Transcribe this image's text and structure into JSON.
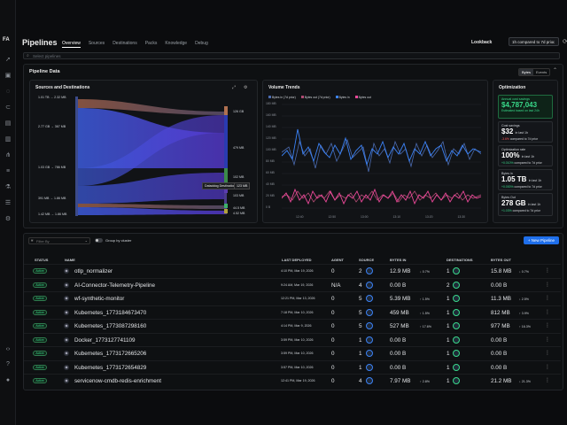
{
  "app": {
    "logo": "FA",
    "page_title": "Pipelines"
  },
  "tabs": [
    "Overview",
    "Sources",
    "Destinations",
    "Packs",
    "Knowledge",
    "Debug"
  ],
  "lookback": {
    "label": "Lookback",
    "value": "1h compared to 7d prior"
  },
  "search": {
    "placeholder": "Select pipelines"
  },
  "pipeline_data": {
    "title": "Pipeline Data",
    "toggle": [
      "Bytes",
      "Events"
    ],
    "sankey": {
      "title": "Sources and Destinations",
      "sources": [
        "1.01 TB → 2.32 MB",
        "2.77 GB → 367 MB",
        "1.03 GB → 786 MB",
        "391 MB → 1.86 MB",
        "1.42 MB → 1.86 MB"
      ],
      "destinations": [
        "126 GB",
        "479 MB",
        "102 MB",
        "103 MB",
        "44.5 MB",
        "4.52 MB"
      ],
      "tooltip": "Dataddog Destination",
      "tooltip_value": "123 MB"
    },
    "volume": {
      "title": "Volume Trends",
      "legend": [
        "Bytes in (7d prior)",
        "Bytes out (7d prior)",
        "Bytes in",
        "Bytes out"
      ],
      "legend_colors": [
        "#4b6bb0",
        "#b04a72",
        "#3b82f6",
        "#ec4899"
      ],
      "y_labels": [
        "180 MB",
        "160 MB",
        "140 MB",
        "120 MB",
        "100 MB",
        "80 MB",
        "60 MB",
        "40 MB",
        "20 MB",
        "0 B"
      ],
      "x_labels": [
        "12:40",
        "12:50",
        "13:00",
        "13:10",
        "13:20",
        "13:30"
      ]
    },
    "optimization": {
      "title": "Optimization",
      "cards": [
        {
          "label": "Annual cost savings",
          "value": "$4,787,043",
          "note": "Estimated based on last 24h"
        },
        {
          "label": "Cost savings",
          "value": "$32",
          "unit": "in last 1h",
          "delta": "-3.6%",
          "note": "compared to 7d prior"
        },
        {
          "label": "Optimization rate",
          "value": "100%",
          "unit": "in last 1h",
          "delta": "+0.010%",
          "note": "compared to 7d prior"
        },
        {
          "label": "Bytes in",
          "value": "1.05 TB",
          "unit": "in last 1h",
          "delta": "+0.000%",
          "note": "compared to 7d prior"
        },
        {
          "label": "Bytes Out",
          "value": "278 GB",
          "unit": "in last 1h",
          "delta": "+1.03%",
          "note": "compared to 7d prior"
        }
      ]
    }
  },
  "table": {
    "filter_placeholder": "Filter By",
    "group_by_label": "Group by cluster",
    "new_button": "+ New Pipeline",
    "headers": [
      "STATUS",
      "NAME",
      "LAST DEPLOYED",
      "AGENT",
      "SOURCE",
      "BYTES IN",
      "DESTINATIONS",
      "BYTES OUT"
    ],
    "rows": [
      {
        "status": "Active",
        "name": "otlp_normalizer",
        "deployed": "4:10 PM, Mar 19, 2026",
        "agent": "0",
        "source": "2",
        "bytes_in": "12.9 MB",
        "in_delta": "↓ 0.7%",
        "dest": "1",
        "bytes_out": "15.8 MB",
        "out_delta": "↓ 0.7%"
      },
      {
        "status": "Active",
        "name": "AI-Connector-Telemetry-Pipeline",
        "deployed": "9:24 AM, Mar 19, 2026",
        "agent": "N/A",
        "source": "4",
        "bytes_in": "0.00 B",
        "in_delta": "",
        "dest": "2",
        "bytes_out": "0.00 B",
        "out_delta": ""
      },
      {
        "status": "Active",
        "name": "wf-synthetic-monitor",
        "deployed": "12:21 PM, Mar 13, 2026",
        "agent": "0",
        "source": "5",
        "bytes_in": "5.39 MB",
        "in_delta": "↑ 1.5%",
        "dest": "1",
        "bytes_out": "11.3 MB",
        "out_delta": "↓ 2.5%"
      },
      {
        "status": "Active",
        "name": "Kubernetes_1773184673470",
        "deployed": "7:18 PM, Mar 10, 2026",
        "agent": "0",
        "source": "5",
        "bytes_in": "459 MB",
        "in_delta": "↑ 1.5%",
        "dest": "1",
        "bytes_out": "812 MB",
        "out_delta": "↑ 3.9%"
      },
      {
        "status": "Active",
        "name": "Kubernetes_1773087298160",
        "deployed": "4:14 PM, Mar 9, 2026",
        "agent": "0",
        "source": "5",
        "bytes_in": "527 MB",
        "in_delta": "↑ 17.6%",
        "dest": "1",
        "bytes_out": "977 MB",
        "out_delta": "↑ 16.3%"
      },
      {
        "status": "Active",
        "name": "Docker_1773127741109",
        "deployed": "3:59 PM, Mar 10, 2026",
        "agent": "0",
        "source": "1",
        "bytes_in": "0.00 B",
        "in_delta": "",
        "dest": "1",
        "bytes_out": "0.00 B",
        "out_delta": ""
      },
      {
        "status": "Active",
        "name": "Kubernetes_1773172665206",
        "deployed": "3:59 PM, Mar 10, 2026",
        "agent": "0",
        "source": "1",
        "bytes_in": "0.00 B",
        "in_delta": "",
        "dest": "1",
        "bytes_out": "0.00 B",
        "out_delta": ""
      },
      {
        "status": "Active",
        "name": "Kubernetes_1773172654829",
        "deployed": "3:57 PM, Mar 10, 2026",
        "agent": "0",
        "source": "1",
        "bytes_in": "0.00 B",
        "in_delta": "",
        "dest": "1",
        "bytes_out": "0.00 B",
        "out_delta": ""
      },
      {
        "status": "Active",
        "name": "servicenow-cmdb-redis-enrichment",
        "deployed": "12:41 PM, Mar 19, 2026",
        "agent": "0",
        "source": "4",
        "bytes_in": "7.97 MB",
        "in_delta": "↑ 2.8%",
        "dest": "1",
        "bytes_out": "21.2 MB",
        "out_delta": "↓ 21.3%"
      }
    ]
  }
}
